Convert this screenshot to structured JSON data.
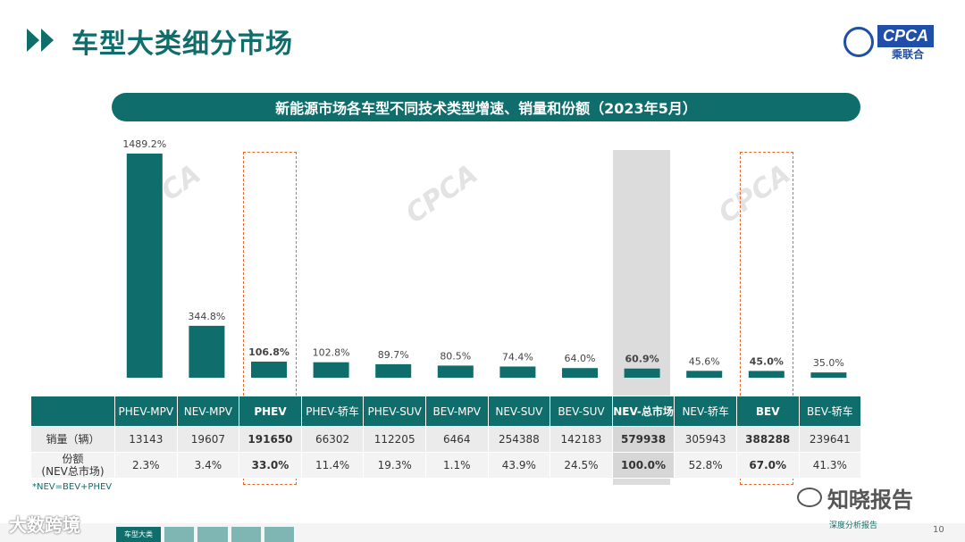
{
  "header": {
    "title": "车型大类细分市场",
    "logo_text": "CPCA",
    "logo_sub": "乘联合"
  },
  "banner": "新能源市场各车型不同技术类型增速、销量和份额（2023年5月）",
  "chart_data": {
    "type": "bar",
    "title": "新能源市场各车型不同技术类型增速、销量和份额（2023年5月）",
    "categories": [
      "PHEV-MPV",
      "NEV-MPV",
      "PHEV",
      "PHEV-轿车",
      "PHEV-SUV",
      "BEV-MPV",
      "NEV-SUV",
      "BEV-SUV",
      "NEV-总市场",
      "NEV-轿车",
      "BEV",
      "BEV-轿车"
    ],
    "series": [
      {
        "values": [
          1489.2,
          344.8,
          106.8,
          102.8,
          89.7,
          80.5,
          74.4,
          64.0,
          60.9,
          45.6,
          45.0,
          35.0
        ],
        "labels": [
          "1489.2%",
          "344.8%",
          "106.8%",
          "102.8%",
          "89.7%",
          "80.5%",
          "74.4%",
          "64.0%",
          "60.9%",
          "45.6%",
          "45.0%",
          "35.0%"
        ]
      }
    ],
    "ylim": [
      0,
      1489.2
    ],
    "highlighted": [
      "PHEV",
      "NEV-总市场",
      "BEV"
    ],
    "colors": {
      "bar": "#0f6e6b",
      "highlight_border": "#e8692b",
      "shade": "#dcdcdc"
    }
  },
  "table": {
    "rows": [
      {
        "label": "销量（辆）",
        "values": [
          "13143",
          "19607",
          "191650",
          "66302",
          "112205",
          "6464",
          "254388",
          "142183",
          "579938",
          "305943",
          "388288",
          "239641"
        ]
      },
      {
        "label_line1": "份额",
        "label_line2": "(NEV总市场)",
        "values": [
          "2.3%",
          "3.4%",
          "33.0%",
          "11.4%",
          "19.3%",
          "1.1%",
          "43.9%",
          "24.5%",
          "100.0%",
          "52.8%",
          "67.0%",
          "41.3%"
        ]
      }
    ]
  },
  "footnote": "*NEV=BEV+PHEV",
  "bottom": {
    "tabs": [
      "车型大类",
      "",
      "",
      "",
      ""
    ],
    "slogan": "深度分析报告",
    "page_number": "10"
  },
  "watermarks": {
    "cpca": "CPCA",
    "corner": "大数跨境",
    "zhihu": "知晓报告"
  }
}
